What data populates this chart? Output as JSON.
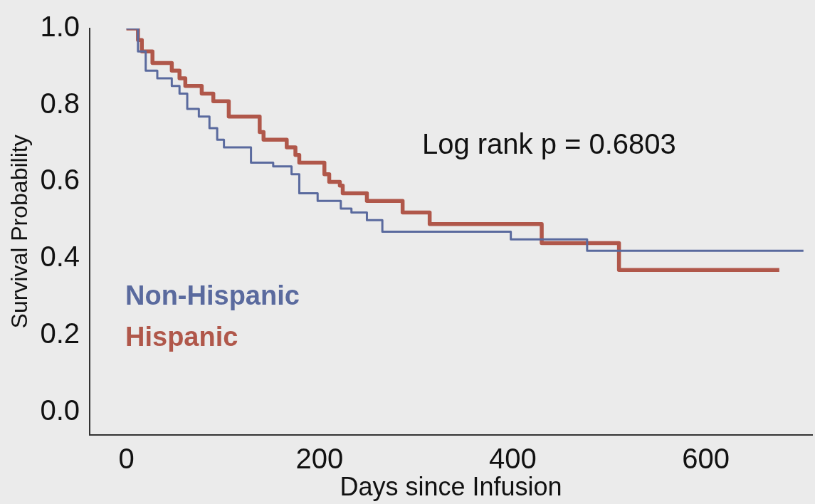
{
  "chart_data": {
    "type": "step",
    "xlabel": "Days since Infusion",
    "ylabel": "Survival Probability",
    "xlim": [
      -38,
      710
    ],
    "xticks": [
      0,
      200,
      400,
      600
    ],
    "ylim": [
      -0.06,
      1.0
    ],
    "yticks": [
      {
        "value": 0.0,
        "label": "0.0"
      },
      {
        "value": 0.2,
        "label": "0.2"
      },
      {
        "value": 0.4,
        "label": "0.4"
      },
      {
        "value": 0.6,
        "label": "0.6"
      },
      {
        "value": 0.8,
        "label": "0.8"
      },
      {
        "value": 1.0,
        "label": "1.0"
      }
    ],
    "grid": false,
    "legend": "bottom left",
    "marker": "none",
    "line_style": "solid",
    "annotations": [
      "Log rank p = 0.6803"
    ],
    "series": [
      {
        "name": "Non-Hispanic",
        "color": "#5a6a9e",
        "x": [
          0,
          12,
          20,
          32,
          47,
          55,
          63,
          75,
          86,
          94,
          101,
          129,
          152,
          171,
          179,
          198,
          222,
          233,
          249,
          265,
          398,
          477,
          701
        ],
        "values": [
          1.0,
          0.94,
          0.89,
          0.87,
          0.85,
          0.83,
          0.79,
          0.77,
          0.74,
          0.71,
          0.69,
          0.65,
          0.64,
          0.62,
          0.57,
          0.55,
          0.53,
          0.52,
          0.5,
          0.47,
          0.45,
          0.42,
          0.42
        ]
      },
      {
        "name": "Hispanic",
        "color": "#b0574a",
        "x": [
          0,
          12,
          16,
          27,
          47,
          55,
          61,
          78,
          90,
          106,
          138,
          142,
          166,
          175,
          179,
          205,
          210,
          221,
          224,
          249,
          286,
          314,
          430,
          510,
          676
        ],
        "values": [
          1.0,
          0.97,
          0.94,
          0.91,
          0.89,
          0.87,
          0.85,
          0.83,
          0.81,
          0.77,
          0.73,
          0.71,
          0.69,
          0.67,
          0.65,
          0.62,
          0.6,
          0.59,
          0.57,
          0.55,
          0.52,
          0.49,
          0.44,
          0.37,
          0.37
        ]
      }
    ]
  }
}
